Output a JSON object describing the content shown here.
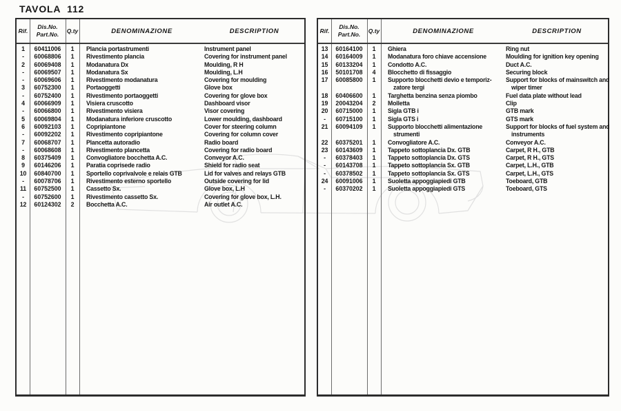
{
  "title": "TAVOLA  112",
  "columns": {
    "rif": "Rif.",
    "dis_no": "Dis.No.",
    "part_no": "Part.No.",
    "qty": "Q.ty",
    "denominazione": "DENOMINAZIONE",
    "description": "DESCRIPTION"
  },
  "watermark": {
    "icon": "car-side-outline",
    "color": "#e0e0e0"
  },
  "tables": [
    {
      "rows": [
        {
          "rif": "1",
          "part_no": "60411006",
          "qty": "1",
          "denom": [
            "Plancia portastrumenti"
          ],
          "desc": [
            "Instrument panel"
          ]
        },
        {
          "rif": "-",
          "part_no": "60068806",
          "qty": "1",
          "denom": [
            "Rivestimento plancia"
          ],
          "desc": [
            "Covering for instrument panel"
          ]
        },
        {
          "rif": "2",
          "part_no": "60069408",
          "qty": "1",
          "denom": [
            "Modanatura Dx"
          ],
          "desc": [
            "Moulding, R H"
          ]
        },
        {
          "rif": "-",
          "part_no": "60069507",
          "qty": "1",
          "denom": [
            "Modanatura Sx"
          ],
          "desc": [
            "Moulding, L.H"
          ]
        },
        {
          "rif": "-",
          "part_no": "60069606",
          "qty": "1",
          "denom": [
            "Rivestimento modanatura"
          ],
          "desc": [
            "Covering for moulding"
          ]
        },
        {
          "rif": "3",
          "part_no": "60752300",
          "qty": "1",
          "denom": [
            "Portaoggetti"
          ],
          "desc": [
            "Glove box"
          ]
        },
        {
          "rif": "-",
          "part_no": "60752400",
          "qty": "1",
          "denom": [
            "Rivestimento portaoggetti"
          ],
          "desc": [
            "Covering for glove box"
          ]
        },
        {
          "rif": "4",
          "part_no": "60066909",
          "qty": "1",
          "denom": [
            "Visiera cruscotto"
          ],
          "desc": [
            "Dashboard visor"
          ]
        },
        {
          "rif": "-",
          "part_no": "60066800",
          "qty": "1",
          "denom": [
            "Rivestimento visiera"
          ],
          "desc": [
            "Visor covering"
          ]
        },
        {
          "rif": "5",
          "part_no": "60069804",
          "qty": "1",
          "denom": [
            "Modanatura inferiore cruscotto"
          ],
          "desc": [
            "Lower moulding, dashboard"
          ]
        },
        {
          "rif": "6",
          "part_no": "60092103",
          "qty": "1",
          "denom": [
            "Copripiantone"
          ],
          "desc": [
            "Cover for steering column"
          ]
        },
        {
          "rif": "-",
          "part_no": "60092202",
          "qty": "1",
          "denom": [
            "Rivestimento copripiantone"
          ],
          "desc": [
            "Covering for column cover"
          ]
        },
        {
          "rif": "7",
          "part_no": "60068707",
          "qty": "1",
          "denom": [
            "Plancetta autoradio"
          ],
          "desc": [
            "Radio board"
          ]
        },
        {
          "rif": "-",
          "part_no": "60068608",
          "qty": "1",
          "denom": [
            "Rivestimento plancetta"
          ],
          "desc": [
            "Covering for radio board"
          ]
        },
        {
          "rif": "8",
          "part_no": "60375409",
          "qty": "1",
          "denom": [
            "Convogliatore bocchetta A.C."
          ],
          "desc": [
            "Conveyor A.C."
          ]
        },
        {
          "rif": "9",
          "part_no": "60146206",
          "qty": "1",
          "denom": [
            "Paratia coprisede radio"
          ],
          "desc": [
            "Shield for radio seat"
          ]
        },
        {
          "rif": "10",
          "part_no": "60840700",
          "qty": "1",
          "denom": [
            "Sportello coprivalvole e relais GTB"
          ],
          "desc": [
            "Lid for valves and relays GTB"
          ]
        },
        {
          "rif": "-",
          "part_no": "60078706",
          "qty": "1",
          "denom": [
            "Rivestimento esterno sportello"
          ],
          "desc": [
            "Outside covering for lid"
          ]
        },
        {
          "rif": "11",
          "part_no": "60752500",
          "qty": "1",
          "denom": [
            "Cassetto Sx."
          ],
          "desc": [
            "Glove box, L.H"
          ]
        },
        {
          "rif": "-",
          "part_no": "60752600",
          "qty": "1",
          "denom": [
            "Rivestimento cassetto Sx."
          ],
          "desc": [
            "Covering for glove box, L.H."
          ]
        },
        {
          "rif": "12",
          "part_no": "60124302",
          "qty": "2",
          "denom": [
            "Bocchetta A.C."
          ],
          "desc": [
            "Air outlet A.C."
          ]
        }
      ]
    },
    {
      "rows": [
        {
          "rif": "13",
          "part_no": "60164100",
          "qty": "1",
          "denom": [
            "Ghiera"
          ],
          "desc": [
            "Ring nut"
          ]
        },
        {
          "rif": "14",
          "part_no": "60164009",
          "qty": "1",
          "denom": [
            "Modanatura foro chiave accensione"
          ],
          "desc": [
            "Moulding for ignition key opening"
          ]
        },
        {
          "rif": "15",
          "part_no": "60133204",
          "qty": "1",
          "denom": [
            "Condotto A.C."
          ],
          "desc": [
            "Duct  A.C."
          ]
        },
        {
          "rif": "16",
          "part_no": "50101708",
          "qty": "4",
          "denom": [
            "Blocchetto di fissaggio"
          ],
          "desc": [
            "Securing block"
          ]
        },
        {
          "rif": "17",
          "part_no": "60085800",
          "qty": "1",
          "denom": [
            "Supporto blocchetti devio e temporiz-",
            "zatore tergi"
          ],
          "desc": [
            "Support for blocks of mainswitch and",
            "wiper timer"
          ]
        },
        {
          "rif": "18",
          "part_no": "60406600",
          "qty": "1",
          "denom": [
            "Targhetta benzina senza piombo"
          ],
          "desc": [
            "Fuel data plate without lead"
          ]
        },
        {
          "rif": "19",
          "part_no": "20043204",
          "qty": "2",
          "denom": [
            "Molletta"
          ],
          "desc": [
            "Clip"
          ]
        },
        {
          "rif": "20",
          "part_no": "60715000",
          "qty": "1",
          "denom": [
            "Sigla GTB i"
          ],
          "desc": [
            "GTB mark"
          ]
        },
        {
          "rif": "-",
          "part_no": "60715100",
          "qty": "1",
          "denom": [
            "Sigla GTS i"
          ],
          "desc": [
            "GTS mark"
          ]
        },
        {
          "rif": "21",
          "part_no": "60094109",
          "qty": "1",
          "denom": [
            "Supporto blocchetti alimentazione",
            "strumenti"
          ],
          "desc": [
            "Support for blocks of fuel system and",
            "instruments"
          ]
        },
        {
          "rif": "22",
          "part_no": "60375201",
          "qty": "1",
          "denom": [
            "Convogliatore A.C."
          ],
          "desc": [
            "Conveyor A.C."
          ]
        },
        {
          "rif": "23",
          "part_no": "60143609",
          "qty": "1",
          "denom": [
            "Tappeto sottoplancia Dx. GTB"
          ],
          "desc": [
            "Carpet, R H., GTB"
          ]
        },
        {
          "rif": "-",
          "part_no": "60378403",
          "qty": "1",
          "denom": [
            "Tappeto sottoplancia Dx. GTS"
          ],
          "desc": [
            "Carpet, R H., GTS"
          ]
        },
        {
          "rif": "-",
          "part_no": "60143708",
          "qty": "1",
          "denom": [
            "Tappeto sottoplancia Sx. GTB"
          ],
          "desc": [
            "Carpet, L.H., GTB"
          ]
        },
        {
          "rif": "-",
          "part_no": "60378502",
          "qty": "1",
          "denom": [
            "Tappeto sottoplancia Sx. GTS"
          ],
          "desc": [
            "Carpet, L.H., GTS"
          ]
        },
        {
          "rif": "24",
          "part_no": "60091006",
          "qty": "1",
          "denom": [
            "Suoletta appoggiapiedi GTB"
          ],
          "desc": [
            "Toeboard, GTB"
          ]
        },
        {
          "rif": "-",
          "part_no": "60370202",
          "qty": "1",
          "denom": [
            "Suoletta appoggiapiedi GTS"
          ],
          "desc": [
            "Toeboard, GTS"
          ]
        }
      ]
    }
  ]
}
